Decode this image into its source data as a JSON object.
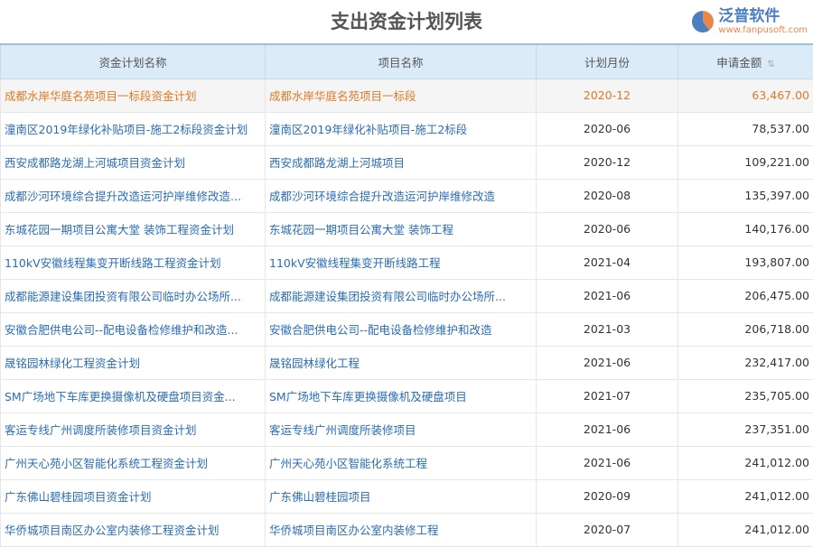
{
  "title": "支出资金计划列表",
  "columns": [
    "资金计划名称",
    "项目名称",
    "计划月份",
    "申请金额"
  ],
  "sort_icon": "sort-icon",
  "rows": [
    {
      "plan": "成都水岸华庭名苑项目一标段资金计划",
      "project": "成都水岸华庭名苑项目一标段",
      "month": "2020-12",
      "amount": "63,467.00"
    },
    {
      "plan": "潼南区2019年绿化补贴项目-施工2标段资金计划",
      "project": "潼南区2019年绿化补贴项目-施工2标段",
      "month": "2020-06",
      "amount": "78,537.00"
    },
    {
      "plan": "西安成都路龙湖上河城项目资金计划",
      "project": "西安成都路龙湖上河城项目",
      "month": "2020-12",
      "amount": "109,221.00"
    },
    {
      "plan": "成都沙河环境综合提升改造运河护岸维修改造...",
      "project": "成都沙河环境综合提升改造运河护岸维修改造",
      "month": "2020-08",
      "amount": "135,397.00"
    },
    {
      "plan": "东城花园一期项目公寓大堂 装饰工程资金计划",
      "project": "东城花园一期项目公寓大堂 装饰工程",
      "month": "2020-06",
      "amount": "140,176.00"
    },
    {
      "plan": "110kV安徽线程集变开断线路工程资金计划",
      "project": "110kV安徽线程集变开断线路工程",
      "month": "2021-04",
      "amount": "193,807.00"
    },
    {
      "plan": "成都能源建设集团投资有限公司临时办公场所...",
      "project": "成都能源建设集团投资有限公司临时办公场所...",
      "month": "2021-06",
      "amount": "206,475.00"
    },
    {
      "plan": "安徽合肥供电公司--配电设备检修维护和改造...",
      "project": "安徽合肥供电公司--配电设备检修维护和改造",
      "month": "2021-03",
      "amount": "206,718.00"
    },
    {
      "plan": "晟铭园林绿化工程资金计划",
      "project": "晟铭园林绿化工程",
      "month": "2021-06",
      "amount": "232,417.00"
    },
    {
      "plan": "SM广场地下车库更换摄像机及硬盘项目资金...",
      "project": "SM广场地下车库更换摄像机及硬盘项目",
      "month": "2021-07",
      "amount": "235,705.00"
    },
    {
      "plan": "客运专线广州调度所装修项目资金计划",
      "project": "客运专线广州调度所装修项目",
      "month": "2021-06",
      "amount": "237,351.00"
    },
    {
      "plan": "广州天心苑小区智能化系统工程资金计划",
      "project": "广州天心苑小区智能化系统工程",
      "month": "2021-06",
      "amount": "241,012.00"
    },
    {
      "plan": "广东佛山碧桂园项目资金计划",
      "project": "广东佛山碧桂园项目",
      "month": "2020-09",
      "amount": "241,012.00"
    },
    {
      "plan": "华侨城项目南区办公室内装修工程资金计划",
      "project": "华侨城项目南区办公室内装修工程",
      "month": "2020-07",
      "amount": "241,012.00"
    }
  ],
  "watermark": {
    "name": "泛普软件",
    "url": "www.fanpusoft.com"
  },
  "colors": {
    "header_bg": "#dcebf8",
    "link": "#2a6db5",
    "selected": "#e07a26"
  }
}
